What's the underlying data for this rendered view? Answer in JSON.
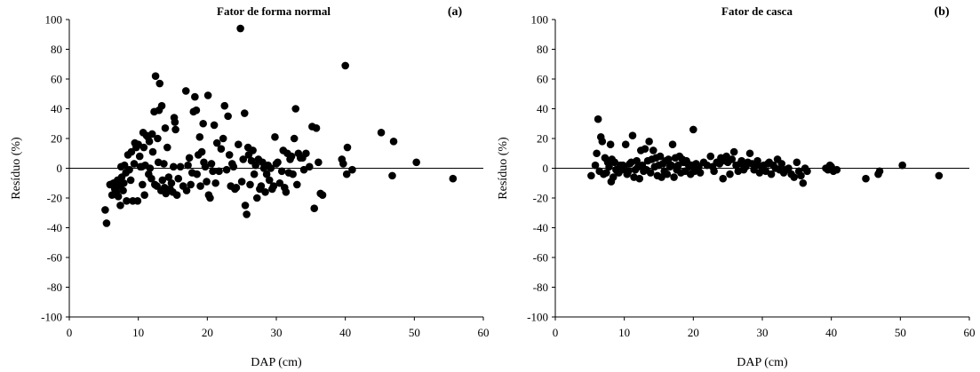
{
  "chart_data": [
    {
      "type": "scatter",
      "panel_label": "(a)",
      "title": "Fator de forma normal",
      "xlabel": "DAP (cm)",
      "ylabel": "Resíduo (%)",
      "xlim": [
        0,
        60
      ],
      "ylim": [
        -100,
        100
      ],
      "xticks": [
        "0",
        "10",
        "20",
        "30",
        "40",
        "50",
        "60"
      ],
      "yticks": [
        "100",
        "80",
        "60",
        "40",
        "20",
        "0",
        "-20",
        "-40",
        "-60",
        "-80",
        "-100"
      ],
      "reference_line_y": 0,
      "grid": false,
      "marker_color": "#000000",
      "points": [
        [
          5.2,
          -28
        ],
        [
          5.4,
          -37
        ],
        [
          5.9,
          -11
        ],
        [
          6.2,
          -18
        ],
        [
          6.4,
          -10
        ],
        [
          6.6,
          -14
        ],
        [
          6.8,
          -16
        ],
        [
          7.0,
          -8
        ],
        [
          7.1,
          -19
        ],
        [
          7.3,
          -12
        ],
        [
          7.4,
          -25
        ],
        [
          7.5,
          1
        ],
        [
          7.6,
          -6
        ],
        [
          7.8,
          -15
        ],
        [
          7.9,
          -10
        ],
        [
          8.0,
          2
        ],
        [
          8.2,
          -3
        ],
        [
          8.3,
          -22
        ],
        [
          8.5,
          9
        ],
        [
          8.7,
          -1
        ],
        [
          8.9,
          -8
        ],
        [
          9.0,
          11
        ],
        [
          9.2,
          -22
        ],
        [
          9.4,
          3
        ],
        [
          9.5,
          17
        ],
        [
          9.7,
          14
        ],
        [
          9.9,
          -22
        ],
        [
          10.0,
          16
        ],
        [
          10.2,
          8
        ],
        [
          10.3,
          1
        ],
        [
          10.5,
          1
        ],
        [
          10.6,
          -11
        ],
        [
          10.7,
          24
        ],
        [
          10.8,
          14
        ],
        [
          10.9,
          -18
        ],
        [
          11.0,
          2
        ],
        [
          11.2,
          22
        ],
        [
          11.4,
          21
        ],
        [
          11.5,
          -4
        ],
        [
          11.6,
          18
        ],
        [
          11.7,
          0
        ],
        [
          11.9,
          -7
        ],
        [
          12.0,
          23
        ],
        [
          12.1,
          11
        ],
        [
          12.3,
          38
        ],
        [
          12.4,
          -11
        ],
        [
          12.5,
          62
        ],
        [
          12.7,
          -12
        ],
        [
          12.8,
          20
        ],
        [
          12.9,
          4
        ],
        [
          13.0,
          39
        ],
        [
          13.1,
          57
        ],
        [
          13.3,
          -15
        ],
        [
          13.4,
          42
        ],
        [
          13.5,
          -8
        ],
        [
          13.7,
          3
        ],
        [
          13.8,
          -13
        ],
        [
          13.9,
          27
        ],
        [
          14.0,
          -17
        ],
        [
          14.2,
          14
        ],
        [
          14.4,
          -6
        ],
        [
          14.6,
          -14
        ],
        [
          14.8,
          -10
        ],
        [
          15.0,
          -16
        ],
        [
          15.1,
          1
        ],
        [
          15.2,
          34
        ],
        [
          15.3,
          31
        ],
        [
          15.4,
          26
        ],
        [
          15.6,
          -18
        ],
        [
          15.8,
          -7
        ],
        [
          16.1,
          1
        ],
        [
          16.5,
          -12
        ],
        [
          16.9,
          52
        ],
        [
          17.0,
          -15
        ],
        [
          17.2,
          2
        ],
        [
          17.4,
          7
        ],
        [
          17.6,
          -11
        ],
        [
          17.8,
          -3
        ],
        [
          18.0,
          38
        ],
        [
          18.2,
          48
        ],
        [
          18.4,
          39
        ],
        [
          18.5,
          -4
        ],
        [
          18.7,
          9
        ],
        [
          18.9,
          21
        ],
        [
          19.0,
          -12
        ],
        [
          19.2,
          11
        ],
        [
          19.4,
          30
        ],
        [
          19.5,
          4
        ],
        [
          19.7,
          1
        ],
        [
          19.9,
          -9
        ],
        [
          20.1,
          49
        ],
        [
          20.2,
          -18
        ],
        [
          20.4,
          -20
        ],
        [
          20.6,
          3
        ],
        [
          20.8,
          -2
        ],
        [
          21.0,
          29
        ],
        [
          21.2,
          -10
        ],
        [
          21.4,
          17
        ],
        [
          21.7,
          -2
        ],
        [
          22.0,
          13
        ],
        [
          22.3,
          20
        ],
        [
          22.5,
          42
        ],
        [
          22.8,
          -1
        ],
        [
          23.0,
          35
        ],
        [
          23.2,
          9
        ],
        [
          23.4,
          -12
        ],
        [
          23.6,
          3
        ],
        [
          23.8,
          1
        ],
        [
          24.0,
          -14
        ],
        [
          24.2,
          -13
        ],
        [
          24.5,
          16
        ],
        [
          24.8,
          94
        ],
        [
          25.0,
          -9
        ],
        [
          25.2,
          6
        ],
        [
          25.4,
          37
        ],
        [
          25.5,
          -25
        ],
        [
          25.7,
          -31
        ],
        [
          25.9,
          14
        ],
        [
          26.0,
          9
        ],
        [
          26.2,
          -11
        ],
        [
          26.4,
          5
        ],
        [
          26.6,
          12
        ],
        [
          26.8,
          -4
        ],
        [
          27.0,
          2
        ],
        [
          27.2,
          -20
        ],
        [
          27.4,
          6
        ],
        [
          27.6,
          -14
        ],
        [
          27.8,
          -12
        ],
        [
          28.0,
          4
        ],
        [
          28.2,
          0
        ],
        [
          28.4,
          -16
        ],
        [
          28.6,
          -4
        ],
        [
          28.8,
          2
        ],
        [
          29.0,
          -8
        ],
        [
          29.2,
          0
        ],
        [
          29.4,
          -14
        ],
        [
          29.6,
          -12
        ],
        [
          29.8,
          21
        ],
        [
          30.0,
          3
        ],
        [
          30.2,
          4
        ],
        [
          30.5,
          -10
        ],
        [
          30.8,
          -2
        ],
        [
          31.0,
          12
        ],
        [
          31.2,
          -13
        ],
        [
          31.4,
          -16
        ],
        [
          31.6,
          10
        ],
        [
          31.8,
          -3
        ],
        [
          32.0,
          6
        ],
        [
          32.2,
          8
        ],
        [
          32.4,
          -4
        ],
        [
          32.6,
          20
        ],
        [
          32.8,
          40
        ],
        [
          33.0,
          -11
        ],
        [
          33.2,
          10
        ],
        [
          33.5,
          7
        ],
        [
          33.8,
          7
        ],
        [
          34.0,
          -1
        ],
        [
          34.3,
          10
        ],
        [
          34.8,
          1
        ],
        [
          35.2,
          28
        ],
        [
          35.5,
          -27
        ],
        [
          35.8,
          27
        ],
        [
          36.1,
          4
        ],
        [
          36.4,
          -17
        ],
        [
          36.7,
          -18
        ],
        [
          39.5,
          6
        ],
        [
          39.7,
          3
        ],
        [
          40.0,
          69
        ],
        [
          40.2,
          -4
        ],
        [
          40.3,
          14
        ],
        [
          41.0,
          -1
        ],
        [
          45.2,
          24
        ],
        [
          46.8,
          -5
        ],
        [
          47.0,
          18
        ],
        [
          50.3,
          4
        ],
        [
          55.6,
          -7
        ]
      ]
    },
    {
      "type": "scatter",
      "panel_label": "(b)",
      "title": "Fator de casca",
      "xlabel": "DAP (cm)",
      "ylabel": "Resíduo (%)",
      "xlim": [
        0,
        60
      ],
      "ylim": [
        -100,
        100
      ],
      "xticks": [
        "0",
        "10",
        "20",
        "30",
        "40",
        "50",
        "60"
      ],
      "yticks": [
        "100",
        "80",
        "60",
        "40",
        "20",
        "0",
        "-20",
        "-40",
        "-60",
        "-80",
        "-100"
      ],
      "reference_line_y": 0,
      "grid": false,
      "marker_color": "#000000",
      "points": [
        [
          5.2,
          -5
        ],
        [
          5.8,
          2
        ],
        [
          6.0,
          10
        ],
        [
          6.2,
          33
        ],
        [
          6.4,
          -2
        ],
        [
          6.6,
          21
        ],
        [
          6.8,
          18
        ],
        [
          7.0,
          -4
        ],
        [
          7.2,
          7
        ],
        [
          7.4,
          -3
        ],
        [
          7.6,
          4
        ],
        [
          7.8,
          1
        ],
        [
          8.0,
          16
        ],
        [
          8.1,
          -9
        ],
        [
          8.2,
          6
        ],
        [
          8.4,
          -6
        ],
        [
          8.6,
          4
        ],
        [
          8.8,
          -1
        ],
        [
          9.0,
          -2
        ],
        [
          9.2,
          -3
        ],
        [
          9.4,
          2
        ],
        [
          9.6,
          -1
        ],
        [
          9.8,
          2
        ],
        [
          10.0,
          0
        ],
        [
          10.2,
          16
        ],
        [
          10.4,
          -4
        ],
        [
          10.6,
          -2
        ],
        [
          10.8,
          3
        ],
        [
          11.0,
          4
        ],
        [
          11.2,
          22
        ],
        [
          11.4,
          -6
        ],
        [
          11.6,
          -1
        ],
        [
          11.8,
          5
        ],
        [
          12.0,
          1
        ],
        [
          12.2,
          -7
        ],
        [
          12.4,
          12
        ],
        [
          12.6,
          2
        ],
        [
          12.8,
          -2
        ],
        [
          13.0,
          13
        ],
        [
          13.2,
          -1
        ],
        [
          13.4,
          5
        ],
        [
          13.6,
          18
        ],
        [
          13.8,
          -3
        ],
        [
          14.0,
          6
        ],
        [
          14.2,
          12
        ],
        [
          14.4,
          1
        ],
        [
          14.6,
          7
        ],
        [
          14.8,
          -5
        ],
        [
          15.0,
          2
        ],
        [
          15.2,
          8
        ],
        [
          15.4,
          -6
        ],
        [
          15.6,
          3
        ],
        [
          15.8,
          -2
        ],
        [
          16.0,
          5
        ],
        [
          16.2,
          -4
        ],
        [
          16.4,
          6
        ],
        [
          16.6,
          1
        ],
        [
          16.8,
          2
        ],
        [
          17.0,
          16
        ],
        [
          17.2,
          -6
        ],
        [
          17.4,
          7
        ],
        [
          17.6,
          -1
        ],
        [
          17.8,
          2
        ],
        [
          18.0,
          8
        ],
        [
          18.2,
          -3
        ],
        [
          18.4,
          6
        ],
        [
          18.6,
          4
        ],
        [
          18.8,
          -2
        ],
        [
          19.0,
          5
        ],
        [
          19.2,
          3
        ],
        [
          19.4,
          1
        ],
        [
          19.6,
          -4
        ],
        [
          19.8,
          2
        ],
        [
          20.0,
          26
        ],
        [
          20.2,
          -2
        ],
        [
          20.4,
          3
        ],
        [
          20.6,
          0
        ],
        [
          20.8,
          1
        ],
        [
          21.0,
          -3
        ],
        [
          21.5,
          4
        ],
        [
          22.0,
          2
        ],
        [
          22.5,
          8
        ],
        [
          22.8,
          1
        ],
        [
          23.0,
          -2
        ],
        [
          23.4,
          4
        ],
        [
          23.8,
          3
        ],
        [
          24.0,
          7
        ],
        [
          24.3,
          -7
        ],
        [
          24.6,
          5
        ],
        [
          24.8,
          8
        ],
        [
          25.0,
          4
        ],
        [
          25.3,
          -4
        ],
        [
          25.6,
          6
        ],
        [
          25.9,
          11
        ],
        [
          26.2,
          2
        ],
        [
          26.5,
          -2
        ],
        [
          26.8,
          3
        ],
        [
          27.0,
          5
        ],
        [
          27.3,
          -1
        ],
        [
          27.6,
          1
        ],
        [
          27.9,
          4
        ],
        [
          28.2,
          10
        ],
        [
          28.5,
          3
        ],
        [
          28.8,
          -1
        ],
        [
          29.0,
          2
        ],
        [
          29.3,
          5
        ],
        [
          29.6,
          -3
        ],
        [
          29.9,
          1
        ],
        [
          30.2,
          2
        ],
        [
          30.5,
          -2
        ],
        [
          30.8,
          3
        ],
        [
          31.0,
          4
        ],
        [
          31.3,
          -4
        ],
        [
          31.6,
          2
        ],
        [
          31.9,
          0
        ],
        [
          32.2,
          6
        ],
        [
          32.5,
          -1
        ],
        [
          32.8,
          3
        ],
        [
          33.1,
          -3
        ],
        [
          33.4,
          -1
        ],
        [
          33.8,
          0
        ],
        [
          34.2,
          -4
        ],
        [
          34.6,
          -6
        ],
        [
          35.0,
          4
        ],
        [
          35.3,
          -2
        ],
        [
          35.6,
          -5
        ],
        [
          35.9,
          -10
        ],
        [
          36.2,
          0
        ],
        [
          36.5,
          -2
        ],
        [
          39.2,
          0
        ],
        [
          39.5,
          -1
        ],
        [
          39.8,
          2
        ],
        [
          40.0,
          1
        ],
        [
          40.3,
          -2
        ],
        [
          40.8,
          -1
        ],
        [
          45.0,
          -7
        ],
        [
          46.8,
          -4
        ],
        [
          47.0,
          -2
        ],
        [
          50.3,
          2
        ],
        [
          55.6,
          -5
        ]
      ]
    }
  ]
}
